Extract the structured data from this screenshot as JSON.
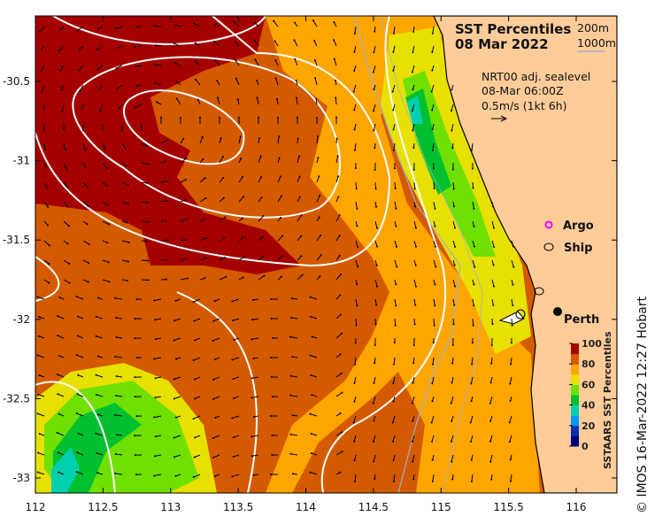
{
  "title": {
    "line1": "SST Percentiles",
    "line2": "08 Mar 2022"
  },
  "isobaths": [
    {
      "label": "200m",
      "color": "#f7d2a8"
    },
    {
      "label": "1000m",
      "color": "#9fb0c8"
    }
  ],
  "current_info": {
    "line1": "NRT00 adj. sealevel",
    "line2": "08-Mar 06:00Z",
    "line3": "0.5m/s (1kt 6h)"
  },
  "legend": {
    "argo": "Argo",
    "ship": "Ship",
    "argo_color": "#ff00ff"
  },
  "city": {
    "name": "Perth"
  },
  "colorbar": {
    "label": "SSTAARS SST Percentiles",
    "ticks": [
      "0",
      "20",
      "40",
      "60",
      "80",
      "100"
    ],
    "colors": [
      "#000080",
      "#0030b0",
      "#0096ff",
      "#00d0b0",
      "#00c030",
      "#70e000",
      "#e8e000",
      "#ffa500",
      "#d45a00",
      "#a50000"
    ]
  },
  "axes": {
    "x_ticks": [
      "112",
      "112.5",
      "113",
      "113.5",
      "114",
      "114.5",
      "115",
      "115.5",
      "116"
    ],
    "y_ticks": [
      "-30.5",
      "-31",
      "-31.5",
      "-32",
      "-32.5",
      "-33"
    ]
  },
  "credit": "© IMOS 16-Mar-2022 12:27 Hobart",
  "colors": {
    "land": "#fdcc99",
    "ocean_base": "#d45a00"
  }
}
